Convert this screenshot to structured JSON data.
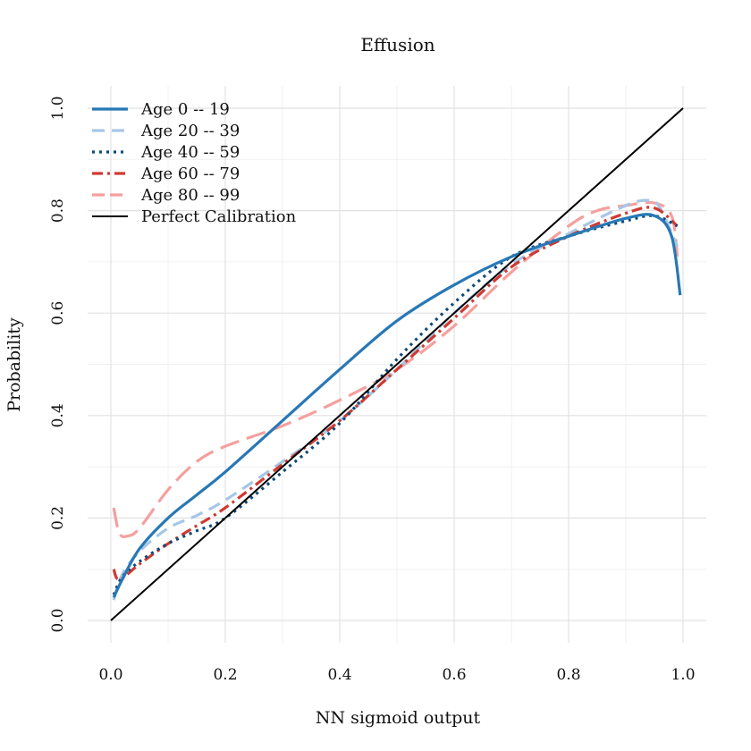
{
  "chart_data": {
    "type": "line",
    "title": "Effusion",
    "xlabel": "NN sigmoid output",
    "ylabel": "Probability",
    "xlim": [
      0.0,
      1.0
    ],
    "ylim": [
      0.0,
      1.0
    ],
    "grid": true,
    "legend_position": "top-left",
    "x_ticks": [
      "0.0",
      "0.2",
      "0.4",
      "0.6",
      "0.8",
      "1.0"
    ],
    "y_ticks": [
      "0.0",
      "0.2",
      "0.4",
      "0.6",
      "0.8",
      "1.0"
    ],
    "series": [
      {
        "name": "Age 0 -- 19",
        "color": "#2878b5",
        "style": "solid",
        "x": [
          0.005,
          0.02,
          0.05,
          0.1,
          0.15,
          0.2,
          0.3,
          0.4,
          0.5,
          0.6,
          0.7,
          0.8,
          0.9,
          0.95,
          0.98,
          0.995
        ],
        "y": [
          0.045,
          0.08,
          0.14,
          0.2,
          0.245,
          0.29,
          0.39,
          0.49,
          0.585,
          0.655,
          0.71,
          0.75,
          0.785,
          0.79,
          0.75,
          0.635
        ]
      },
      {
        "name": "Age 20 -- 39",
        "color": "#a6c6e6",
        "style": "dashed",
        "x": [
          0.005,
          0.02,
          0.05,
          0.1,
          0.15,
          0.2,
          0.3,
          0.4,
          0.5,
          0.6,
          0.7,
          0.8,
          0.9,
          0.94,
          0.96,
          0.99
        ],
        "y": [
          0.04,
          0.09,
          0.135,
          0.18,
          0.205,
          0.235,
          0.31,
          0.39,
          0.49,
          0.6,
          0.695,
          0.755,
          0.81,
          0.82,
          0.805,
          0.73
        ]
      },
      {
        "name": "Age 40 -- 59",
        "color": "#0d4a7a",
        "style": "dotted",
        "x": [
          0.005,
          0.02,
          0.05,
          0.1,
          0.15,
          0.2,
          0.3,
          0.4,
          0.5,
          0.6,
          0.7,
          0.8,
          0.9,
          0.95,
          0.99
        ],
        "y": [
          0.05,
          0.085,
          0.115,
          0.15,
          0.175,
          0.2,
          0.29,
          0.385,
          0.51,
          0.62,
          0.71,
          0.75,
          0.78,
          0.79,
          0.77
        ]
      },
      {
        "name": "Age 60 -- 79",
        "color": "#cf3a33",
        "style": "dashdot",
        "x": [
          0.005,
          0.015,
          0.05,
          0.1,
          0.15,
          0.2,
          0.3,
          0.4,
          0.5,
          0.6,
          0.7,
          0.8,
          0.9,
          0.95,
          0.99
        ],
        "y": [
          0.1,
          0.08,
          0.11,
          0.15,
          0.185,
          0.22,
          0.305,
          0.39,
          0.49,
          0.59,
          0.69,
          0.75,
          0.795,
          0.805,
          0.77
        ]
      },
      {
        "name": "Age 80 -- 99",
        "color": "#f4a09e",
        "style": "longdash",
        "x": [
          0.005,
          0.015,
          0.03,
          0.05,
          0.1,
          0.15,
          0.2,
          0.3,
          0.4,
          0.5,
          0.6,
          0.7,
          0.8,
          0.85,
          0.9,
          0.95,
          0.98,
          0.99
        ],
        "y": [
          0.22,
          0.17,
          0.165,
          0.18,
          0.255,
          0.31,
          0.34,
          0.38,
          0.43,
          0.49,
          0.575,
          0.68,
          0.77,
          0.8,
          0.81,
          0.815,
          0.79,
          0.71
        ]
      },
      {
        "name": "Perfect Calibration",
        "color": "#000000",
        "style": "solid-thin",
        "x": [
          0.0,
          1.0
        ],
        "y": [
          0.0,
          1.0
        ]
      }
    ]
  }
}
